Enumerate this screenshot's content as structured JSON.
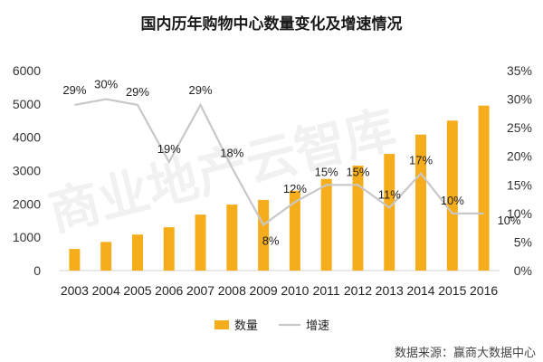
{
  "chart_data": {
    "type": "bar",
    "title": "国内历年购物中心数量变化及增速情况",
    "categories": [
      "2003",
      "2004",
      "2005",
      "2006",
      "2007",
      "2008",
      "2009",
      "2010",
      "2011",
      "2012",
      "2013",
      "2014",
      "2015",
      "2016"
    ],
    "series": [
      {
        "name": "数量",
        "type": "bar",
        "axis": "left",
        "color": "#f5ad1b",
        "values": [
          650,
          860,
          1080,
          1300,
          1680,
          1980,
          2120,
          2400,
          2750,
          3150,
          3500,
          4080,
          4500,
          4950
        ]
      },
      {
        "name": "增速",
        "type": "line",
        "axis": "right",
        "color": "#c8c8c8",
        "values": [
          29,
          30,
          29,
          19,
          29,
          18,
          8,
          12,
          15,
          15,
          11,
          17,
          10,
          10
        ],
        "labels": [
          "29%",
          "30%",
          "29%",
          "19%",
          "29%",
          "18%",
          "8%",
          "12%",
          "15%",
          "15%",
          "11%",
          "17%",
          "10%",
          "10%"
        ]
      }
    ],
    "y_left": {
      "min": 0,
      "max": 6000,
      "ticks": [
        "0",
        "1000",
        "2000",
        "3000",
        "4000",
        "5000",
        "6000"
      ]
    },
    "y_right": {
      "min": 0,
      "max": 35,
      "ticks": [
        "0%",
        "5%",
        "10%",
        "15%",
        "20%",
        "25%",
        "30%",
        "35%"
      ]
    },
    "grid": false,
    "legend": "bottom"
  },
  "watermark": "商业地产云智库",
  "source": "数据来源：赢商大数据中心"
}
